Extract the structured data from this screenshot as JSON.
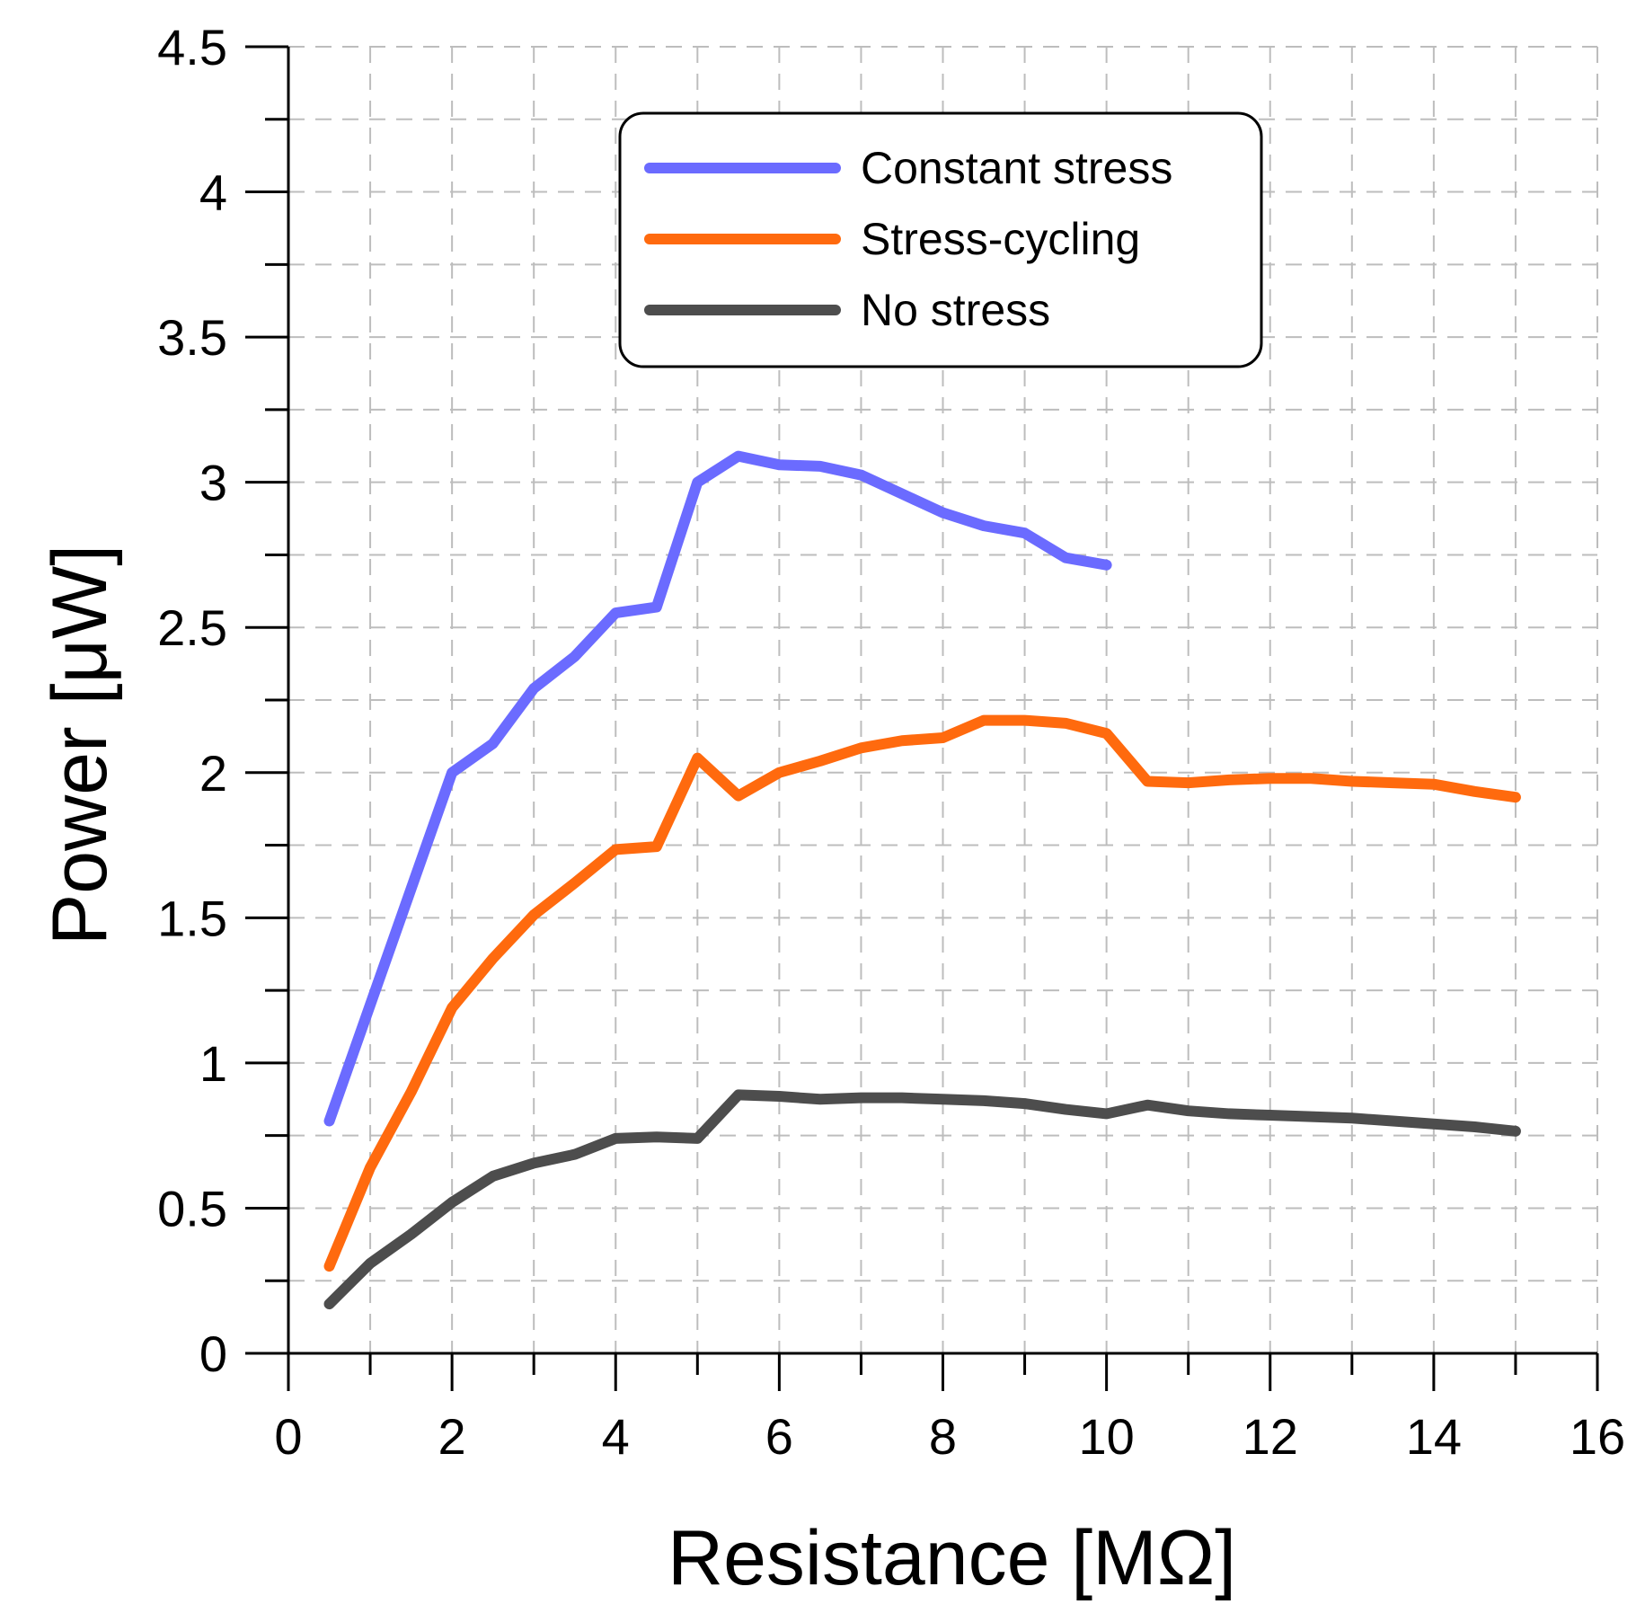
{
  "chart_data": {
    "type": "line",
    "title": "",
    "xlabel": "Resistance [MΩ]",
    "ylabel": "Power [μW]",
    "xlim": [
      0,
      16
    ],
    "ylim": [
      0,
      4.5
    ],
    "x_ticks": [
      0,
      2,
      4,
      6,
      8,
      10,
      12,
      14,
      16
    ],
    "y_ticks": [
      0,
      0.5,
      1,
      1.5,
      2,
      2.5,
      3,
      3.5,
      4,
      4.5
    ],
    "x_tick_labels": [
      "0",
      "2",
      "4",
      "6",
      "8",
      "10",
      "12",
      "14",
      "16"
    ],
    "y_tick_labels": [
      "0",
      "0.5",
      "1",
      "1.5",
      "2",
      "2.5",
      "3",
      "3.5",
      "4",
      "4.5"
    ],
    "grid": true,
    "legend_position": "top-center",
    "series": [
      {
        "name": "Constant stress",
        "color": "#6b6bff",
        "x": [
          0.5,
          1,
          1.5,
          2,
          2.5,
          3,
          3.5,
          4,
          4.5,
          5,
          5.5,
          6,
          6.5,
          7,
          7.5,
          8,
          8.5,
          9,
          9.5,
          10
        ],
        "y": [
          0.8,
          1.2,
          1.6,
          2.0,
          2.1,
          2.29,
          2.4,
          2.55,
          2.57,
          3.0,
          3.09,
          3.06,
          3.055,
          3.025,
          2.96,
          2.895,
          2.85,
          2.825,
          2.74,
          2.715
        ]
      },
      {
        "name": "Stress-cycling",
        "color": "#ff6a0e",
        "x": [
          0.5,
          1,
          1.5,
          2,
          2.5,
          3,
          3.5,
          4,
          4.5,
          5,
          5.5,
          6,
          6.5,
          7,
          7.5,
          8,
          8.5,
          9,
          9.5,
          10,
          10.5,
          11,
          11.5,
          12,
          12.5,
          13,
          13.5,
          14,
          14.5,
          15
        ],
        "y": [
          0.3,
          0.64,
          0.9,
          1.19,
          1.36,
          1.51,
          1.62,
          1.735,
          1.745,
          2.05,
          1.92,
          2.0,
          2.04,
          2.085,
          2.11,
          2.12,
          2.18,
          2.18,
          2.17,
          2.135,
          1.97,
          1.965,
          1.975,
          1.98,
          1.98,
          1.97,
          1.965,
          1.96,
          1.935,
          1.915
        ]
      },
      {
        "name": "No stress",
        "color": "#4d4d4d",
        "x": [
          0.5,
          1,
          1.5,
          2,
          2.5,
          3,
          3.5,
          4,
          4.5,
          5,
          5.5,
          6,
          6.5,
          7,
          7.5,
          8,
          8.5,
          9,
          9.5,
          10,
          10.5,
          11,
          11.5,
          12,
          12.5,
          13,
          13.5,
          14,
          14.5,
          15
        ],
        "y": [
          0.17,
          0.31,
          0.41,
          0.52,
          0.61,
          0.655,
          0.685,
          0.74,
          0.745,
          0.74,
          0.89,
          0.885,
          0.875,
          0.88,
          0.88,
          0.875,
          0.87,
          0.86,
          0.84,
          0.825,
          0.855,
          0.835,
          0.825,
          0.82,
          0.815,
          0.81,
          0.8,
          0.79,
          0.78,
          0.765
        ]
      }
    ]
  }
}
